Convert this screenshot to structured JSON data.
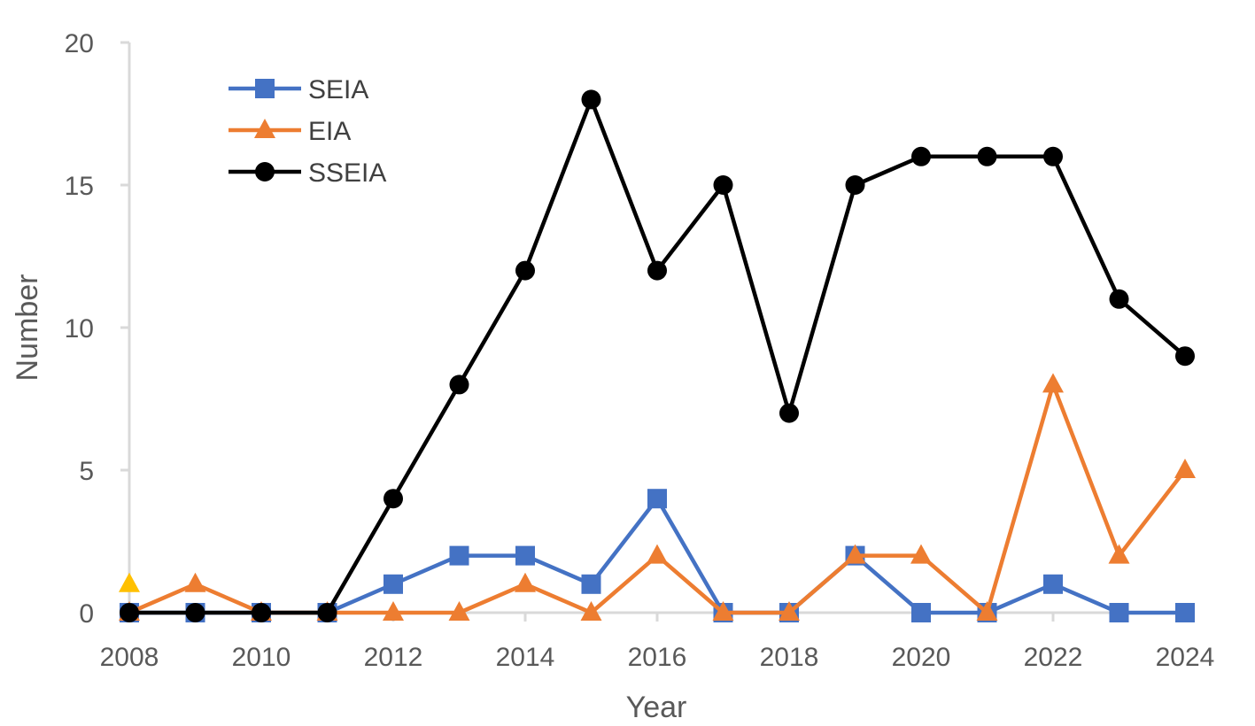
{
  "chart_data": {
    "type": "line",
    "xlabel": "Year",
    "ylabel": "Number",
    "xlim": [
      2008,
      2024
    ],
    "ylim": [
      0,
      20
    ],
    "x_ticks": [
      2008,
      2010,
      2012,
      2014,
      2016,
      2018,
      2020,
      2022,
      2024
    ],
    "y_ticks": [
      0,
      5,
      10,
      15,
      20
    ],
    "grid": false,
    "legend_position": "top-left",
    "x": [
      2008,
      2009,
      2010,
      2011,
      2012,
      2013,
      2014,
      2015,
      2016,
      2017,
      2018,
      2019,
      2020,
      2021,
      2022,
      2023,
      2024
    ],
    "series": [
      {
        "name": "SEIA",
        "color": "#4472C4",
        "marker": "square",
        "values": [
          0,
          0,
          0,
          0,
          1,
          2,
          2,
          1,
          4,
          0,
          0,
          2,
          0,
          0,
          1,
          0,
          0
        ]
      },
      {
        "name": "EIA",
        "color": "#ED7D31",
        "marker": "triangle",
        "values": [
          0,
          1,
          0,
          0,
          0,
          0,
          1,
          0,
          2,
          0,
          0,
          2,
          2,
          0,
          8,
          2,
          5
        ]
      },
      {
        "name": "SSEIA",
        "color": "#000000",
        "marker": "circle",
        "values": [
          0,
          0,
          0,
          0,
          4,
          8,
          12,
          18,
          12,
          15,
          7,
          15,
          16,
          16,
          16,
          11,
          9
        ]
      }
    ],
    "extra_points": [
      {
        "x": 2008,
        "y": 1,
        "color": "#FFC000",
        "marker": "triangle"
      }
    ],
    "axis_color": "#D9D9D9"
  }
}
